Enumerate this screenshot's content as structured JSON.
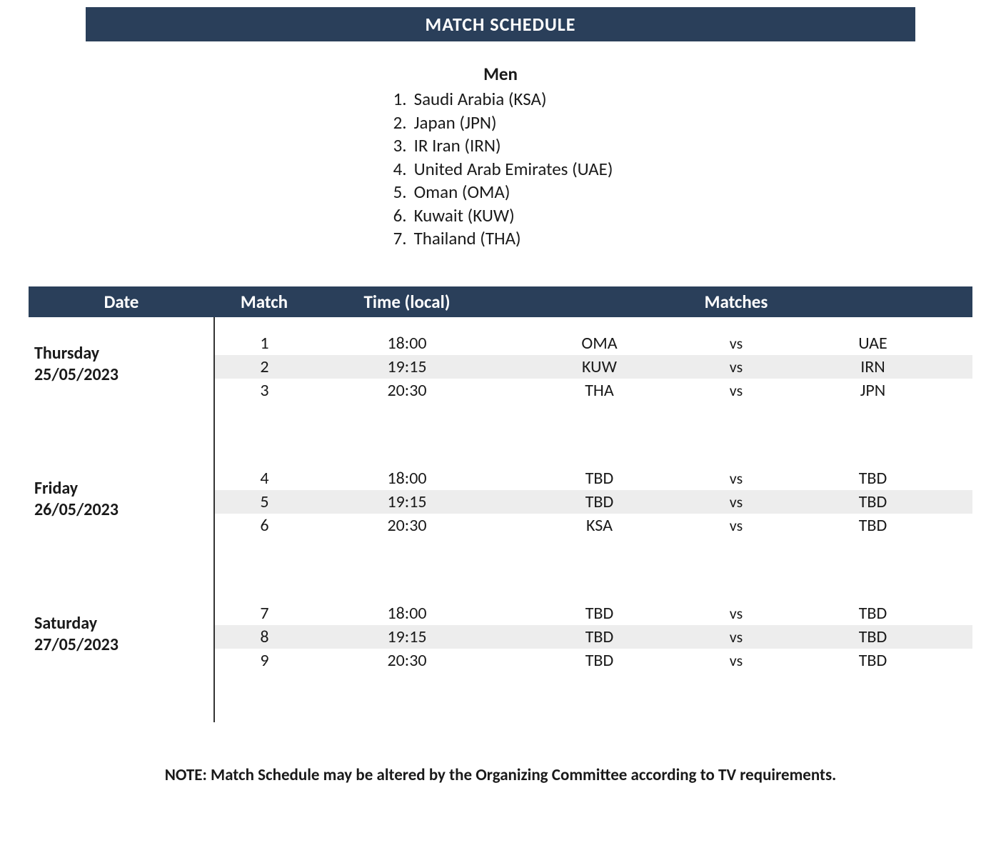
{
  "header": {
    "title": "MATCH SCHEDULE"
  },
  "teams": {
    "heading": "Men",
    "list": [
      "Saudi Arabia (KSA)",
      "Japan (JPN)",
      "IR Iran (IRN)",
      "United Arab Emirates (UAE)",
      "Oman (OMA)",
      "Kuwait (KUW)",
      "Thailand (THA)"
    ]
  },
  "columns": {
    "date": "Date",
    "match": "Match",
    "time": "Time (local)",
    "matches": "Matches"
  },
  "days": [
    {
      "day_name": "Thursday",
      "date": "25/05/2023",
      "rows": [
        {
          "match_no": "1",
          "time": "18:00",
          "team1": "OMA",
          "vs": "vs",
          "team2": "UAE",
          "shaded": false
        },
        {
          "match_no": "2",
          "time": "19:15",
          "team1": "KUW",
          "vs": "vs",
          "team2": "IRN",
          "shaded": true
        },
        {
          "match_no": "3",
          "time": "20:30",
          "team1": "THA",
          "vs": "vs",
          "team2": "JPN",
          "shaded": false
        }
      ]
    },
    {
      "day_name": "Friday",
      "date": "26/05/2023",
      "rows": [
        {
          "match_no": "4",
          "time": "18:00",
          "team1": "TBD",
          "vs": "vs",
          "team2": "TBD",
          "shaded": false
        },
        {
          "match_no": "5",
          "time": "19:15",
          "team1": "TBD",
          "vs": "vs",
          "team2": "TBD",
          "shaded": true
        },
        {
          "match_no": "6",
          "time": "20:30",
          "team1": "KSA",
          "vs": "vs",
          "team2": "TBD",
          "shaded": false
        }
      ]
    },
    {
      "day_name": "Saturday",
      "date": "27/05/2023",
      "rows": [
        {
          "match_no": "7",
          "time": "18:00",
          "team1": "TBD",
          "vs": "vs",
          "team2": "TBD",
          "shaded": false
        },
        {
          "match_no": "8",
          "time": "19:15",
          "team1": "TBD",
          "vs": "vs",
          "team2": "TBD",
          "shaded": true
        },
        {
          "match_no": "9",
          "time": "20:30",
          "team1": "TBD",
          "vs": "vs",
          "team2": "TBD",
          "shaded": false
        }
      ]
    }
  ],
  "note": "NOTE: Match Schedule may be altered by the Organizing Committee according to TV requirements.",
  "colors": {
    "header_bg": "#2a3f5a",
    "header_fg": "#ffffff",
    "row_shade": "#ededed",
    "text": "#1a1a1a"
  }
}
